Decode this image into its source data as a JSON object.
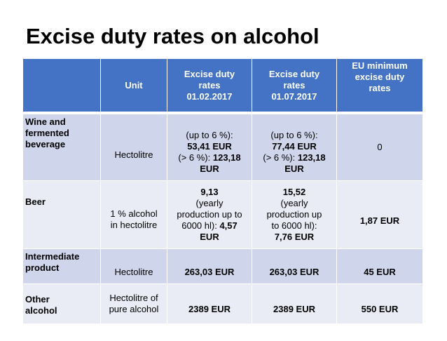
{
  "title": "Excise duty rates on alcohol",
  "header": {
    "corner": "",
    "unit": "Unit",
    "col1": [
      "Excise duty",
      "rates",
      "01.02.2017"
    ],
    "col2": [
      "Excise duty",
      "rates",
      "01.07.2017"
    ],
    "col3": [
      "EU minimum",
      "excise duty",
      "rates"
    ]
  },
  "rows": {
    "wine": {
      "name": [
        "Wine and",
        "fermented",
        "beverage"
      ],
      "unit": "Hectolitre",
      "rate1": {
        "a": "(up to 6 %):",
        "b": "53,41 EUR",
        "c": "(> 6 %): ",
        "d": "123,18",
        "e": "EUR"
      },
      "rate2": {
        "a": "(up to 6 %):",
        "b": "77,44 EUR",
        "c": "(> 6 %): ",
        "d": "123,18",
        "e": "EUR"
      },
      "eu": "0"
    },
    "beer": {
      "name": "Beer",
      "unit": [
        "1 % alcohol",
        "in hectolitre"
      ],
      "rate1": {
        "a": "9,13",
        "b": "(yearly",
        "c": "production up to",
        "d": "6000 hl): ",
        "e": "4,57",
        "f": "EUR"
      },
      "rate2": {
        "a": "15,52",
        "b": "(yearly",
        "c": "production up",
        "d": "to 6000 hl):",
        "e": "7,76 EUR"
      },
      "eu": "1,87 EUR"
    },
    "intermediate": {
      "name": [
        "Intermediate",
        "product"
      ],
      "unit": "Hectolitre",
      "rate1": "263,03 EUR",
      "rate2": "263,03 EUR",
      "eu": "45 EUR"
    },
    "other": {
      "name": [
        "Other",
        "alcohol"
      ],
      "unit": [
        "Hectolitre of",
        "pure alcohol"
      ],
      "rate1": "2389 EUR",
      "rate2": "2389 EUR",
      "eu": "550 EUR"
    }
  }
}
